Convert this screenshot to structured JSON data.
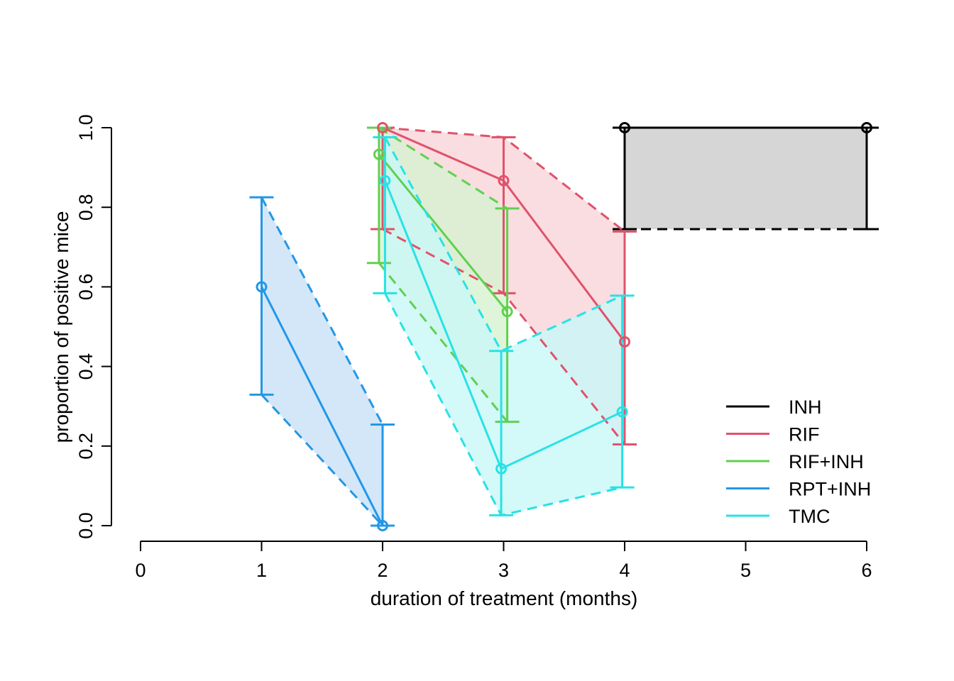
{
  "chart_data": {
    "type": "line",
    "title": "",
    "xlabel": "duration of treatment (months)",
    "ylabel": "proportion of positive mice",
    "xlim": [
      0,
      6
    ],
    "ylim": [
      0,
      1
    ],
    "x_ticks": [
      "0",
      "1",
      "2",
      "3",
      "4",
      "5",
      "6"
    ],
    "y_ticks": [
      "0.0",
      "0.2",
      "0.4",
      "0.6",
      "0.8",
      "1.0"
    ],
    "grid": false,
    "legend_position": "bottom-right",
    "series": [
      {
        "name": "INH",
        "color": "#000000",
        "fill": "#cccccc",
        "x": [
          4,
          6
        ],
        "y": [
          1.0,
          1.0
        ],
        "lower": [
          0.745,
          0.745
        ],
        "upper": [
          1.0,
          1.0
        ]
      },
      {
        "name": "RIF",
        "color": "#df536b",
        "fill": "#f7d4da",
        "x": [
          2,
          3,
          4
        ],
        "y": [
          1.0,
          0.867,
          0.462
        ],
        "lower": [
          0.745,
          0.584,
          0.204
        ],
        "upper": [
          1.0,
          0.976,
          0.739
        ]
      },
      {
        "name": "RIF+INH",
        "color": "#61d04f",
        "fill": "#d6f2d1",
        "x": [
          1.97,
          3.03
        ],
        "y": [
          0.933,
          0.538
        ],
        "lower": [
          0.66,
          0.261
        ],
        "upper": [
          1.0,
          0.797
        ]
      },
      {
        "name": "RPT+INH",
        "color": "#2297e6",
        "fill": "#c8e1f8",
        "x": [
          1,
          2
        ],
        "y": [
          0.6,
          0.0
        ],
        "lower": [
          0.329,
          0.0
        ],
        "upper": [
          0.825,
          0.254
        ]
      },
      {
        "name": "TMC",
        "color": "#28e2e5",
        "fill": "#c9f7f8",
        "x": [
          2.02,
          2.98,
          3.98
        ],
        "y": [
          0.867,
          0.143,
          0.286
        ],
        "lower": [
          0.584,
          0.026,
          0.096
        ],
        "upper": [
          0.976,
          0.439,
          0.578
        ]
      }
    ]
  }
}
